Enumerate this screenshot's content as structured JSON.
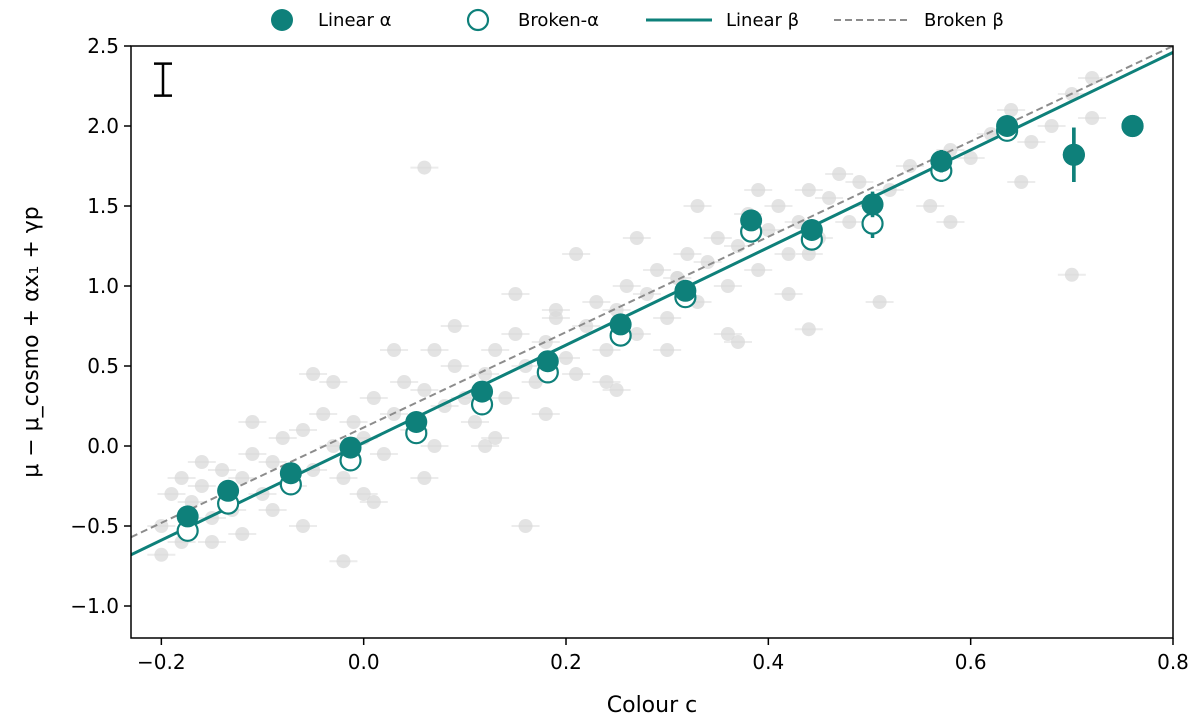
{
  "chart_data": {
    "type": "scatter",
    "xlabel": "Colour c",
    "ylabel": "μ − μ_cosmo + αx₁ + γp",
    "xlim": [
      -0.23,
      0.8
    ],
    "ylim": [
      -1.2,
      2.5
    ],
    "grid": false,
    "legend_position": "top",
    "x_ticks": [
      -0.2,
      0.0,
      0.2,
      0.4,
      0.6,
      0.8
    ],
    "x_tick_labels": [
      "−0.2",
      "0.0",
      "0.2",
      "0.4",
      "0.6",
      "0.8"
    ],
    "y_ticks": [
      -1.0,
      -0.5,
      0.0,
      0.5,
      1.0,
      1.5,
      2.0,
      2.5
    ],
    "y_tick_labels": [
      "−1.0",
      "−0.5",
      "0.0",
      "0.5",
      "1.0",
      "1.5",
      "2.0",
      "2.5"
    ],
    "colors": {
      "teal": "#0e807a",
      "grey_line": "#8c8c8c",
      "background_points": "#dadada"
    },
    "legend": [
      {
        "label": "Linear α",
        "marker": "filled-circle"
      },
      {
        "label": "Broken-α",
        "marker": "open-circle"
      },
      {
        "label": "Linear β",
        "marker": "solid-line"
      },
      {
        "label": "Broken β",
        "marker": "dashed-line"
      }
    ],
    "typical_error_bar": {
      "y_center": 2.29,
      "half_height": 0.1
    },
    "series": [
      {
        "name": "Linear α",
        "style": "filled",
        "x": [
          -0.174,
          -0.134,
          -0.072,
          -0.013,
          0.052,
          0.117,
          0.182,
          0.254,
          0.318,
          0.383,
          0.443,
          0.503,
          0.571,
          0.636,
          0.702,
          0.76
        ],
        "y": [
          -0.44,
          -0.28,
          -0.17,
          -0.01,
          0.15,
          0.34,
          0.53,
          0.76,
          0.97,
          1.41,
          1.35,
          1.51,
          1.78,
          2.0,
          1.82,
          2.0
        ],
        "yerr": [
          0.02,
          0.02,
          0.02,
          0.02,
          0.02,
          0.02,
          0.02,
          0.02,
          0.02,
          0.03,
          0.03,
          0.08,
          0.07,
          0.04,
          0.17,
          0.03
        ]
      },
      {
        "name": "Broken-α",
        "style": "open",
        "x": [
          -0.174,
          -0.134,
          -0.072,
          -0.013,
          0.052,
          0.117,
          0.182,
          0.254,
          0.318,
          0.383,
          0.443,
          0.503,
          0.571,
          0.636,
          0.702,
          0.76
        ],
        "y": [
          -0.53,
          -0.36,
          -0.24,
          -0.09,
          0.08,
          0.26,
          0.46,
          0.69,
          0.93,
          1.34,
          1.29,
          1.39,
          1.72,
          1.97,
          1.82,
          2.0
        ],
        "yerr": [
          0.02,
          0.02,
          0.02,
          0.02,
          0.02,
          0.02,
          0.02,
          0.02,
          0.02,
          0.03,
          0.03,
          0.09,
          0.07,
          0.04,
          0.17,
          0.03
        ]
      }
    ],
    "lines": [
      {
        "name": "Linear β",
        "style": "solid",
        "x": [
          -0.23,
          0.8
        ],
        "y": [
          -0.68,
          2.46
        ]
      },
      {
        "name": "Broken β",
        "style": "dashed",
        "x": [
          -0.23,
          0.8
        ],
        "y": [
          -0.57,
          2.5
        ]
      }
    ],
    "background_points": {
      "x": [
        -0.2,
        -0.19,
        -0.18,
        -0.17,
        -0.16,
        -0.15,
        -0.14,
        -0.13,
        -0.12,
        -0.11,
        -0.1,
        -0.09,
        -0.08,
        -0.07,
        -0.06,
        -0.05,
        -0.04,
        -0.03,
        -0.02,
        -0.01,
        0.0,
        0.01,
        0.02,
        0.03,
        0.04,
        0.05,
        0.06,
        0.07,
        0.08,
        0.09,
        0.1,
        0.11,
        0.12,
        0.13,
        0.14,
        0.15,
        0.16,
        0.17,
        0.18,
        0.19,
        0.2,
        0.21,
        0.22,
        0.23,
        0.24,
        0.25,
        0.26,
        0.27,
        0.28,
        0.29,
        0.3,
        0.31,
        0.32,
        0.33,
        0.34,
        0.35,
        0.36,
        0.37,
        0.38,
        0.39,
        0.4,
        0.41,
        0.42,
        0.43,
        0.44,
        0.45,
        0.46,
        0.47,
        0.48,
        0.49,
        0.5,
        0.52,
        0.54,
        0.56,
        0.58,
        0.6,
        0.62,
        0.64,
        0.66,
        0.68,
        0.7,
        0.72,
        -0.18,
        -0.15,
        -0.12,
        -0.09,
        -0.06,
        -0.03,
        0.0,
        0.03,
        0.06,
        0.09,
        0.12,
        0.15,
        0.18,
        0.21,
        0.24,
        0.27,
        0.3,
        0.33,
        0.36,
        0.39,
        0.42,
        -0.16,
        -0.11,
        -0.05,
        0.01,
        0.07,
        0.13,
        0.19,
        0.25,
        0.31,
        0.37,
        0.44,
        0.51,
        0.58,
        0.65,
        0.7,
        0.72,
        0.06,
        0.16,
        -0.2,
        -0.02,
        0.44
      ],
      "y": [
        -0.5,
        -0.3,
        -0.6,
        -0.35,
        -0.25,
        -0.45,
        -0.15,
        -0.4,
        -0.2,
        -0.05,
        -0.3,
        -0.1,
        0.05,
        -0.25,
        0.1,
        -0.15,
        0.2,
        0.0,
        -0.2,
        0.15,
        0.05,
        0.3,
        -0.05,
        0.2,
        0.4,
        0.1,
        0.35,
        0.0,
        0.25,
        0.5,
        0.3,
        0.15,
        0.45,
        0.6,
        0.3,
        0.7,
        0.5,
        0.4,
        0.65,
        0.8,
        0.55,
        0.45,
        0.75,
        0.9,
        0.6,
        0.85,
        1.0,
        0.7,
        0.95,
        1.1,
        0.8,
        1.05,
        1.2,
        0.9,
        1.15,
        1.3,
        1.0,
        1.25,
        1.45,
        1.1,
        1.35,
        1.5,
        1.2,
        1.4,
        1.6,
        1.3,
        1.55,
        1.7,
        1.4,
        1.65,
        1.5,
        1.6,
        1.75,
        1.5,
        1.85,
        1.8,
        1.95,
        2.1,
        1.9,
        2.0,
        2.2,
        2.05,
        -0.2,
        -0.6,
        -0.55,
        -0.4,
        -0.5,
        0.4,
        -0.3,
        0.6,
        -0.2,
        0.75,
        0.0,
        0.95,
        0.2,
        1.2,
        0.4,
        1.3,
        0.6,
        1.5,
        0.7,
        1.6,
        0.95,
        -0.1,
        0.15,
        0.45,
        -0.35,
        0.6,
        0.05,
        0.85,
        0.35,
        1.05,
        0.65,
        1.2,
        0.9,
        1.4,
        1.65,
        1.07,
        2.3,
        1.74,
        -0.5,
        -0.68,
        -0.72,
        0.73
      ]
    }
  }
}
